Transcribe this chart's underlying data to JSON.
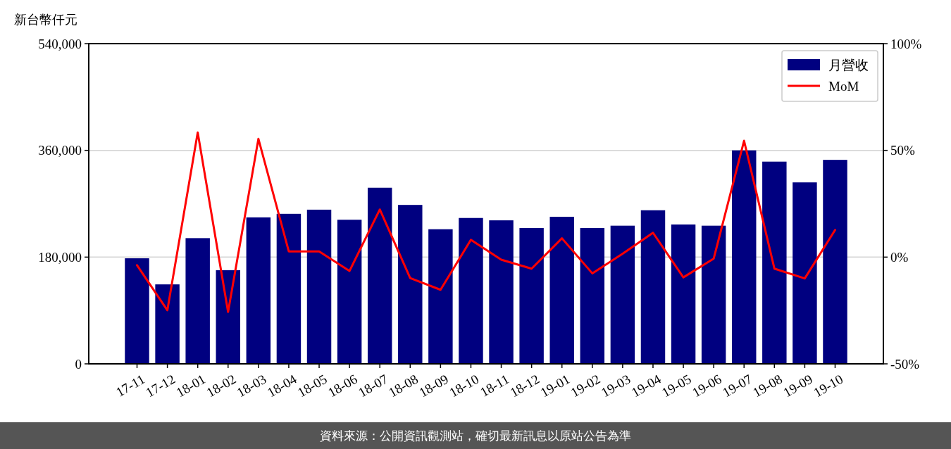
{
  "chart_data": {
    "type": "bar",
    "ylabel": "新台幣仟元",
    "categories": [
      "17-11",
      "17-12",
      "18-01",
      "18-02",
      "18-03",
      "18-04",
      "18-05",
      "18-06",
      "18-07",
      "18-08",
      "18-09",
      "18-10",
      "18-11",
      "18-12",
      "19-01",
      "19-02",
      "19-03",
      "19-04",
      "19-05",
      "19-06",
      "19-07",
      "19-08",
      "19-09",
      "19-10"
    ],
    "series": [
      {
        "name": "月營收",
        "color": "#000080",
        "values": [
          178000,
          134000,
          212000,
          158000,
          247000,
          253000,
          260000,
          243000,
          297000,
          268000,
          227000,
          246000,
          242000,
          229000,
          248000,
          229000,
          233000,
          259000,
          235000,
          233000,
          360000,
          341000,
          306000,
          344000
        ]
      },
      {
        "name": "MoM",
        "type": "line",
        "axis": "y2",
        "color": "#ff0000",
        "values": [
          -3.8,
          -24.9,
          58.4,
          -25.7,
          55.4,
          2.7,
          2.7,
          -6.5,
          22.3,
          -9.8,
          -15.3,
          8.1,
          -1.2,
          -5.4,
          8.8,
          -7.6,
          1.6,
          11.4,
          -9.5,
          -0.7,
          54.5,
          -5.4,
          -10.0,
          12.7
        ]
      }
    ],
    "ylim": [
      0,
      540000
    ],
    "yticks": [
      0,
      {
        "value": 180000,
        "label": "180,000"
      },
      {
        "value": 360000,
        "label": "360,000"
      },
      {
        "value": 540000,
        "label": "540,000"
      }
    ],
    "y2lim": [
      -50,
      100
    ],
    "y2ticks": [
      {
        "value": -50,
        "label": "-50%"
      },
      {
        "value": 0,
        "label": "0%"
      },
      {
        "value": 50,
        "label": "50%"
      },
      {
        "value": 100,
        "label": "100%"
      }
    ],
    "grid": "y",
    "legend": "top right",
    "annotations": [
      "資料來源：公開資訊觀測站，確切最新訊息以原站公告為準"
    ]
  }
}
